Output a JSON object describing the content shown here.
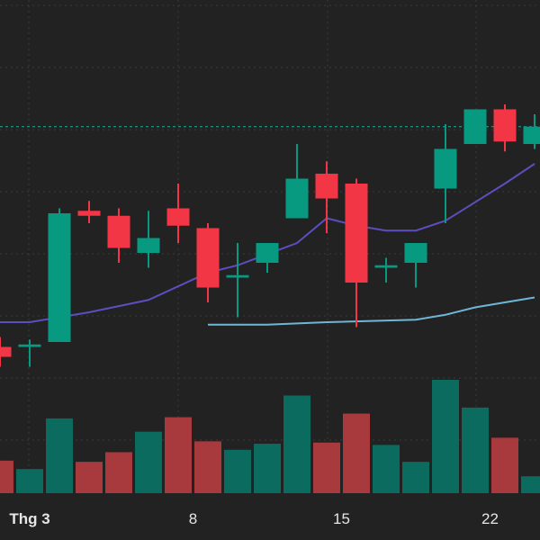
{
  "chart_data": {
    "type": "candlestick",
    "colors": {
      "background": "#222222",
      "grid": "#3a3a3a",
      "up": "#089981",
      "down": "#f23645",
      "volume_up": "#0b6b5e",
      "volume_down": "#a83a3d",
      "ma_short": "#5b4fbf",
      "ma_long": "#6fb6d6",
      "price_line": "#2aa79b",
      "axis_text": "#e6e6e6"
    },
    "grid": true,
    "price_range": [
      0,
      100
    ],
    "price_line_value": 83.5,
    "x_ticks": [
      {
        "label": "Thg 3",
        "index": 0.5,
        "bold": true
      },
      {
        "label": "8",
        "index": 6
      },
      {
        "label": "15",
        "index": 11
      },
      {
        "label": "22",
        "index": 16
      }
    ],
    "candles": [
      {
        "index": -0.5,
        "open": 39,
        "high": 41,
        "low": 35,
        "close": 37,
        "volume": 0.27
      },
      {
        "index": 0.5,
        "open": 39,
        "high": 40.5,
        "low": 35,
        "close": 39.5,
        "volume": 0.2
      },
      {
        "index": 1.5,
        "open": 40,
        "high": 67,
        "low": 40,
        "close": 66,
        "volume": 0.62
      },
      {
        "index": 2.5,
        "open": 66.5,
        "high": 68.5,
        "low": 64,
        "close": 65.5,
        "volume": 0.26
      },
      {
        "index": 3.5,
        "open": 65.5,
        "high": 67,
        "low": 56,
        "close": 59,
        "volume": 0.34
      },
      {
        "index": 4.5,
        "open": 58,
        "high": 66.5,
        "low": 55,
        "close": 61,
        "volume": 0.51
      },
      {
        "index": 5.5,
        "open": 67,
        "high": 72,
        "low": 60,
        "close": 63.5,
        "volume": 0.63
      },
      {
        "index": 6.5,
        "open": 63,
        "high": 64,
        "low": 48,
        "close": 51,
        "volume": 0.43
      },
      {
        "index": 7.5,
        "open": 53,
        "high": 60,
        "low": 45,
        "close": 53.5,
        "volume": 0.36
      },
      {
        "index": 8.5,
        "open": 56,
        "high": 60,
        "low": 54,
        "close": 60,
        "volume": 0.41
      },
      {
        "index": 9.5,
        "open": 65,
        "high": 80,
        "low": 65,
        "close": 73,
        "volume": 0.81
      },
      {
        "index": 10.5,
        "open": 74,
        "high": 76.5,
        "low": 62,
        "close": 69,
        "volume": 0.42
      },
      {
        "index": 11.5,
        "open": 72,
        "high": 73,
        "low": 43,
        "close": 52,
        "volume": 0.66
      },
      {
        "index": 12.5,
        "open": 55,
        "high": 57,
        "low": 52,
        "close": 55.5,
        "volume": 0.4
      },
      {
        "index": 13.5,
        "open": 56,
        "high": 60,
        "low": 51,
        "close": 60,
        "volume": 0.26
      },
      {
        "index": 14.5,
        "open": 71,
        "high": 84,
        "low": 64,
        "close": 79,
        "volume": 0.94
      },
      {
        "index": 15.5,
        "open": 80,
        "high": 87,
        "low": 80,
        "close": 87,
        "volume": 0.71
      },
      {
        "index": 16.5,
        "open": 87,
        "high": 88,
        "low": 78.5,
        "close": 80.5,
        "volume": 0.46
      },
      {
        "index": 17.5,
        "open": 80,
        "high": 86,
        "low": 79,
        "close": 83.5,
        "volume": 0.14
      }
    ],
    "ma_short": [
      [
        -0.5,
        44
      ],
      [
        0.5,
        44
      ],
      [
        2.5,
        46
      ],
      [
        4.5,
        48.5
      ],
      [
        6.5,
        54
      ],
      [
        7.5,
        55.5
      ],
      [
        9.5,
        60
      ],
      [
        10.5,
        65
      ],
      [
        11.5,
        63.5
      ],
      [
        12.5,
        62.5
      ],
      [
        13.5,
        62.5
      ],
      [
        14.5,
        64.5
      ],
      [
        16.5,
        72
      ],
      [
        17.5,
        76
      ]
    ],
    "ma_long": [
      [
        6.5,
        43.5
      ],
      [
        8.5,
        43.5
      ],
      [
        10.5,
        44
      ],
      [
        13.5,
        44.5
      ],
      [
        14.5,
        45.5
      ],
      [
        15.5,
        47
      ],
      [
        17.5,
        49
      ]
    ]
  }
}
